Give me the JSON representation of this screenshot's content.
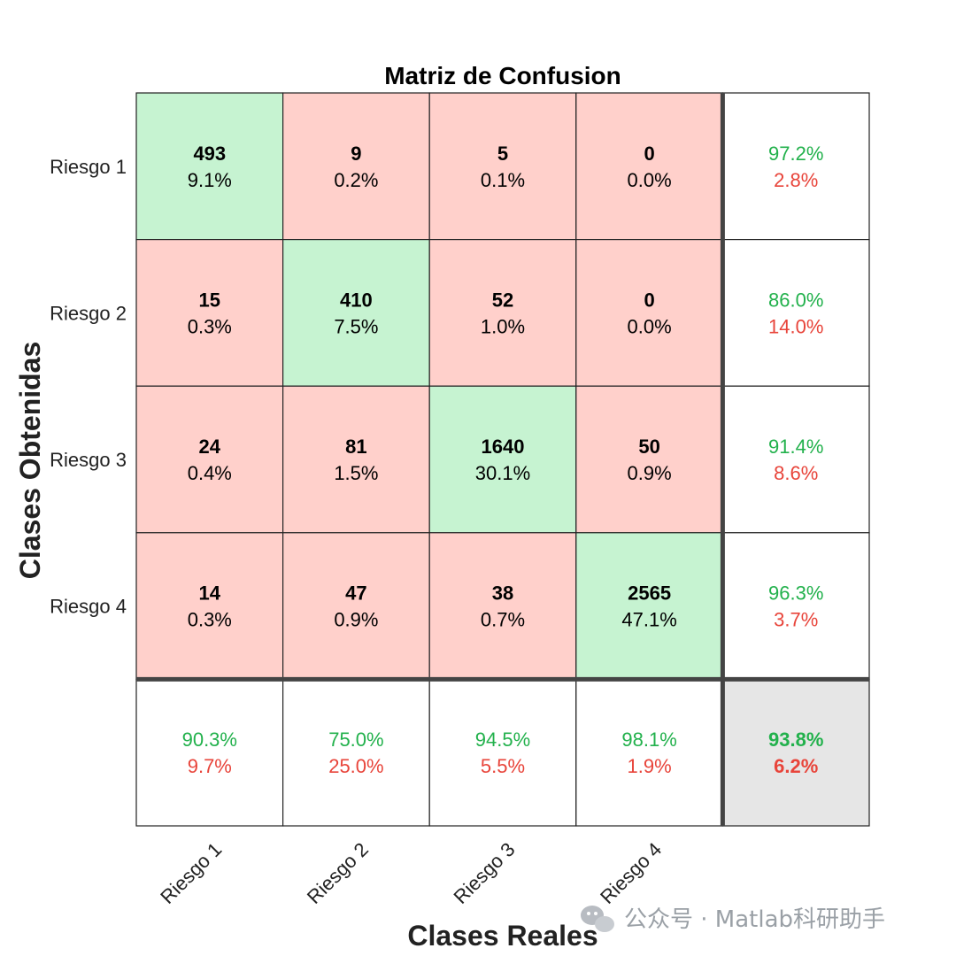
{
  "chart_data": {
    "type": "heatmap",
    "title": "Matriz de Confusion",
    "xlabel": "Clases Reales",
    "ylabel": "Clases Obtenidas",
    "row_labels": [
      "Riesgo 1",
      "Riesgo 2",
      "Riesgo 3",
      "Riesgo 4"
    ],
    "col_labels": [
      "Riesgo 1",
      "Riesgo 2",
      "Riesgo 3",
      "Riesgo 4"
    ],
    "counts": [
      [
        493,
        9,
        5,
        0
      ],
      [
        15,
        410,
        52,
        0
      ],
      [
        24,
        81,
        1640,
        50
      ],
      [
        14,
        47,
        38,
        2565
      ]
    ],
    "percents": [
      [
        "9.1%",
        "0.2%",
        "0.1%",
        "0.0%"
      ],
      [
        "0.3%",
        "7.5%",
        "1.0%",
        "0.0%"
      ],
      [
        "0.4%",
        "1.5%",
        "30.1%",
        "0.9%"
      ],
      [
        "0.3%",
        "0.9%",
        "0.7%",
        "47.1%"
      ]
    ],
    "row_summary": [
      {
        "correct": "97.2%",
        "error": "2.8%"
      },
      {
        "correct": "86.0%",
        "error": "14.0%"
      },
      {
        "correct": "91.4%",
        "error": "8.6%"
      },
      {
        "correct": "96.3%",
        "error": "3.7%"
      }
    ],
    "col_summary": [
      {
        "correct": "90.3%",
        "error": "9.7%"
      },
      {
        "correct": "75.0%",
        "error": "25.0%"
      },
      {
        "correct": "94.5%",
        "error": "5.5%"
      },
      {
        "correct": "98.1%",
        "error": "1.9%"
      }
    ],
    "overall": {
      "correct": "93.8%",
      "error": "6.2%"
    }
  },
  "colors": {
    "diagonal": "#c6f3d1",
    "off_diagonal": "#ffd0cb",
    "summary": "#ffffff",
    "overall": "#e6e6e6",
    "correct_text": "#22b14c",
    "error_text": "#e8443a"
  },
  "watermark": "公众号 · Matlab科研助手"
}
